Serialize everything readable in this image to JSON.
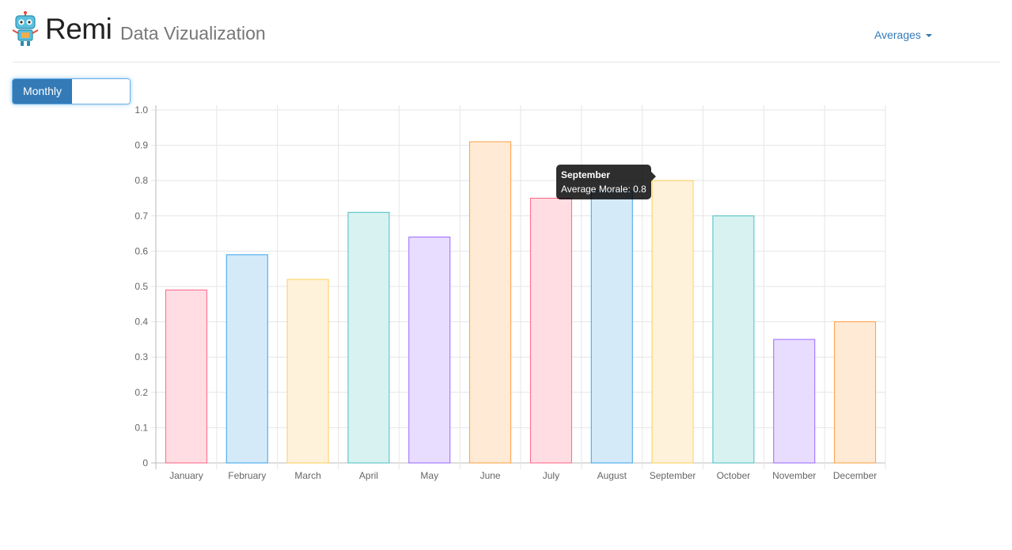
{
  "header": {
    "brand": "Remi",
    "subtitle": "Data Vizualization",
    "nav_dropdown": "Averages",
    "logo_icon": "robot-icon"
  },
  "toggle": {
    "on_label": "Monthly",
    "state": "on"
  },
  "tooltip": {
    "title": "September",
    "body": "Average Morale: 0.8"
  },
  "chart_data": {
    "type": "bar",
    "categories": [
      "January",
      "February",
      "March",
      "April",
      "May",
      "June",
      "July",
      "August",
      "September",
      "October",
      "November",
      "December"
    ],
    "series": [
      {
        "label": "Average Morale",
        "values": [
          0.49,
          0.59,
          0.52,
          0.71,
          0.64,
          0.91,
          0.75,
          0.77,
          0.8,
          0.7,
          0.35,
          0.4
        ]
      }
    ],
    "ylim": [
      0,
      1.0
    ],
    "yticks": [
      "0",
      "0.1",
      "0.2",
      "0.3",
      "0.4",
      "0.5",
      "0.6",
      "0.7",
      "0.8",
      "0.9",
      "1.0"
    ],
    "grid": true,
    "legend": "none",
    "colors": {
      "fills": [
        "#ffdde3",
        "#d5eaf8",
        "#fff2da",
        "#d8f1f1",
        "#e8ddff",
        "#ffead6",
        "#ffdde3",
        "#d5eaf8",
        "#fff2da",
        "#d8f1f1",
        "#e8ddff",
        "#ffead6"
      ],
      "borders": [
        "#ff6384",
        "#36a2eb",
        "#ffce56",
        "#4bc0c0",
        "#9966ff",
        "#ff9f40",
        "#ff6384",
        "#36a2eb",
        "#ffce56",
        "#4bc0c0",
        "#9966ff",
        "#ff9f40"
      ]
    }
  }
}
